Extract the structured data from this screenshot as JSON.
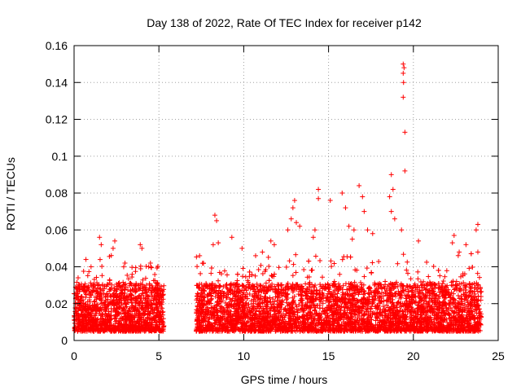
{
  "chart_data": {
    "type": "scatter",
    "title": "Day 138 of 2022, Rate Of TEC Index for receiver p142",
    "xlabel": "GPS time / hours",
    "ylabel": "ROTI / TECUs",
    "xlim": [
      0,
      25
    ],
    "ylim": [
      0,
      0.16
    ],
    "xticks": [
      0,
      5,
      10,
      15,
      20,
      25
    ],
    "yticks": [
      0,
      0.02,
      0.04,
      0.06,
      0.08,
      0.1,
      0.12,
      0.14,
      0.16
    ],
    "xtick_labels": [
      "0",
      "5",
      "10",
      "15",
      "20",
      "25"
    ],
    "ytick_labels": [
      "0",
      "0.02",
      "0.04",
      "0.06",
      "0.08",
      "0.1",
      "0.12",
      "0.14",
      "0.16"
    ],
    "grid": true,
    "marker": "+",
    "marker_color": "#ff0000",
    "series": [
      {
        "name": "ROTI",
        "coverage_hours": [
          [
            0.0,
            5.3
          ],
          [
            7.2,
            24.0
          ]
        ],
        "typical_range": [
          0.005,
          0.025
        ],
        "points": [
          [
            1.5,
            0.056
          ],
          [
            1.6,
            0.052
          ],
          [
            2.4,
            0.054
          ],
          [
            2.3,
            0.05
          ],
          [
            3.9,
            0.052
          ],
          [
            4.0,
            0.05
          ],
          [
            0.7,
            0.044
          ],
          [
            1.0,
            0.04
          ],
          [
            3.0,
            0.042
          ],
          [
            4.5,
            0.042
          ],
          [
            4.4,
            0.04
          ],
          [
            7.4,
            0.046
          ],
          [
            8.3,
            0.068
          ],
          [
            8.4,
            0.065
          ],
          [
            8.2,
            0.052
          ],
          [
            8.5,
            0.053
          ],
          [
            9.3,
            0.056
          ],
          [
            9.9,
            0.05
          ],
          [
            10.7,
            0.046
          ],
          [
            11.1,
            0.048
          ],
          [
            11.6,
            0.054
          ],
          [
            11.8,
            0.052
          ],
          [
            12.6,
            0.06
          ],
          [
            12.9,
            0.072
          ],
          [
            13.0,
            0.076
          ],
          [
            13.1,
            0.064
          ],
          [
            12.8,
            0.066
          ],
          [
            13.3,
            0.062
          ],
          [
            14.4,
            0.082
          ],
          [
            14.4,
            0.077
          ],
          [
            14.2,
            0.06
          ],
          [
            14.1,
            0.056
          ],
          [
            15.1,
            0.076
          ],
          [
            15.8,
            0.08
          ],
          [
            16.0,
            0.072
          ],
          [
            16.2,
            0.062
          ],
          [
            16.5,
            0.06
          ],
          [
            16.4,
            0.055
          ],
          [
            16.8,
            0.084
          ],
          [
            17.0,
            0.078
          ],
          [
            17.1,
            0.07
          ],
          [
            17.3,
            0.06
          ],
          [
            17.6,
            0.058
          ],
          [
            18.7,
            0.09
          ],
          [
            18.8,
            0.082
          ],
          [
            18.6,
            0.078
          ],
          [
            18.7,
            0.07
          ],
          [
            18.9,
            0.066
          ],
          [
            19.4,
            0.15
          ],
          [
            19.45,
            0.148
          ],
          [
            19.4,
            0.145
          ],
          [
            19.42,
            0.14
          ],
          [
            19.4,
            0.132
          ],
          [
            19.5,
            0.113
          ],
          [
            19.5,
            0.092
          ],
          [
            19.3,
            0.06
          ],
          [
            20.3,
            0.054
          ],
          [
            22.4,
            0.057
          ],
          [
            22.3,
            0.053
          ],
          [
            23.1,
            0.052
          ],
          [
            23.8,
            0.063
          ],
          [
            23.7,
            0.06
          ],
          [
            23.8,
            0.048
          ],
          [
            22.7,
            0.048
          ]
        ]
      }
    ]
  }
}
